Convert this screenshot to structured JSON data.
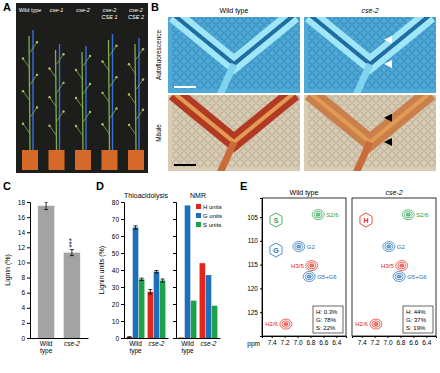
{
  "panel_letters": [
    "A",
    "B",
    "C",
    "D",
    "E"
  ],
  "panel_a": {
    "plants": [
      "Wild type",
      "cse-1",
      "cse-2",
      "cse-2 CSE 1",
      "cse-2 CSE 2"
    ]
  },
  "panel_b": {
    "columns": [
      "Wild type",
      "cse-2"
    ],
    "rows": [
      "Autofluorescence",
      "Mäule"
    ]
  },
  "chart_data": [
    {
      "type": "bar",
      "categories": [
        "Wild type",
        "cse-2"
      ],
      "values": [
        17.5,
        11.3
      ],
      "errors": [
        0.5,
        0.4
      ],
      "color": "#a3a3a3",
      "ylim": [
        0,
        18
      ],
      "yticks": [
        0,
        2,
        4,
        6,
        8,
        10,
        12,
        14,
        16,
        18
      ],
      "ylabel": "Lignin (%)",
      "annotations": [
        {
          "text": "***",
          "category": "cse-2"
        }
      ]
    },
    {
      "type": "bar",
      "title": "Thioacidolysis",
      "categories": [
        "Wild type",
        "cse-2"
      ],
      "series": [
        {
          "color": "#e3261b",
          "values": [
            0.6,
            27.2
          ],
          "errors": [
            0.1,
            1.3
          ]
        },
        {
          "color": "#1c6fb8",
          "values": [
            65,
            39
          ],
          "errors": [
            1,
            0.7
          ]
        },
        {
          "color": "#1fa149",
          "values": [
            34.5,
            33.8
          ],
          "errors": [
            0.7,
            0.9
          ]
        }
      ],
      "ylim": [
        0,
        80
      ],
      "yticks": [
        0,
        10,
        20,
        30,
        40,
        50,
        60,
        70,
        80
      ],
      "ylabel": "Lignin units (%)"
    },
    {
      "type": "bar",
      "title": "NMR",
      "categories": [
        "Wild type",
        "cse-2"
      ],
      "series": [
        {
          "name": "H units",
          "color": "#e3261b",
          "values": [
            0.3,
            44
          ]
        },
        {
          "name": "G units",
          "color": "#1c6fb8",
          "values": [
            78,
            37
          ]
        },
        {
          "name": "S units",
          "color": "#1fa149",
          "values": [
            22,
            19
          ]
        }
      ],
      "ylim": [
        0,
        80
      ],
      "yticks": [
        0,
        10,
        20,
        30,
        40,
        50,
        60,
        70,
        80
      ],
      "tick_labels": "x",
      "legend": "upper right"
    }
  ],
  "panel_e": {
    "xlabel": "ppm",
    "xlim": [
      7.55,
      6.25
    ],
    "xticks": [
      7.4,
      7.2,
      {
        "value": 7,
        "label": "7.0"
      },
      6.8,
      6.6,
      6.4
    ],
    "ylim": [
      101,
      130
    ],
    "yticks": [
      105,
      110,
      115,
      120,
      125
    ],
    "spectra": [
      {
        "title": "Wild type",
        "structures": [
          {
            "letter": "S",
            "color": "#1fa149"
          },
          {
            "letter": "G",
            "color": "#1c6fb8"
          }
        ],
        "peaks": [
          {
            "label": "S2/6",
            "x": 6.68,
            "y": 104.5,
            "color": "#1fa149"
          },
          {
            "label": "G2",
            "x": 6.98,
            "y": 111.2,
            "color": "#1c6fb8"
          },
          {
            "label": "G5+G6",
            "x": 6.82,
            "y": 117.5,
            "color": "#1c6fb8"
          },
          {
            "label": "H3/5",
            "x": 6.78,
            "y": 115.2,
            "color": "#e3261b"
          },
          {
            "label": "H2/6",
            "x": 7.18,
            "y": 127.5,
            "color": "#e3261b"
          }
        ],
        "composition": [
          "H: 0.3%",
          "G: 78%",
          "S: 22%"
        ]
      },
      {
        "title": "cse-2",
        "structures": [
          {
            "letter": "H",
            "color": "#e3261b"
          }
        ],
        "peaks": [
          {
            "label": "S2/6",
            "x": 6.68,
            "y": 104.5,
            "color": "#1fa149"
          },
          {
            "label": "G2",
            "x": 6.98,
            "y": 111.2,
            "color": "#1c6fb8"
          },
          {
            "label": "G5+G6",
            "x": 6.82,
            "y": 117.5,
            "color": "#1c6fb8"
          },
          {
            "label": "H3/5",
            "x": 6.78,
            "y": 115.2,
            "color": "#e3261b"
          },
          {
            "label": "H2/6",
            "x": 7.18,
            "y": 127.5,
            "color": "#e3261b"
          }
        ],
        "composition": [
          "H: 44%",
          "G: 37%",
          "S: 19%"
        ]
      }
    ]
  }
}
